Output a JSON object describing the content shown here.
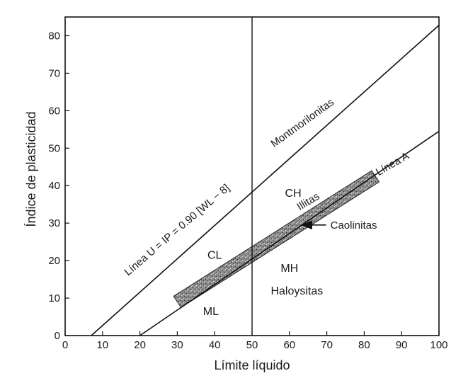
{
  "chart_data": {
    "type": "line",
    "xlabel": "Límite líquido",
    "ylabel": "Índice de plasticidad",
    "xlim": [
      0,
      100
    ],
    "ylim": [
      0,
      85
    ],
    "xticks": [
      0,
      10,
      20,
      30,
      40,
      50,
      60,
      70,
      80,
      90,
      100
    ],
    "yticks": [
      0,
      10,
      20,
      30,
      40,
      50,
      60,
      70,
      80
    ],
    "grid": false,
    "series": [
      {
        "name": "Línea U = IP = 0.90 [WL − 8]",
        "x": [
          7,
          100
        ],
        "y": [
          0,
          82.8
        ],
        "color": "#111111"
      },
      {
        "name": "Línea A",
        "x": [
          20,
          100
        ],
        "y": [
          0,
          54.5
        ],
        "color": "#111111"
      }
    ],
    "vlines": [
      {
        "x": 50
      }
    ],
    "bands": [
      {
        "name": "Caolinitas",
        "points": [
          [
            29,
            10.5
          ],
          [
            82,
            44
          ],
          [
            84,
            41
          ],
          [
            31,
            7.5
          ]
        ]
      }
    ],
    "region_labels": [
      {
        "text": "CH",
        "x": 61,
        "y": 37
      },
      {
        "text": "CL",
        "x": 40,
        "y": 20.5
      },
      {
        "text": "MH",
        "x": 60,
        "y": 17
      },
      {
        "text": "ML",
        "x": 39,
        "y": 5.5
      },
      {
        "text": "Haloysitas",
        "x": 62,
        "y": 11
      },
      {
        "text": "Montmorilonitas",
        "x": 64,
        "y": 56
      }
    ],
    "line_labels": {
      "u_line": "Línea U = IP = 0.90 [WL − 8]",
      "a_line": "Línea A",
      "illitas": "Illitas"
    },
    "callouts": [
      {
        "text": "Caolinitas",
        "target_x": 63,
        "target_y": 29.5
      }
    ]
  }
}
